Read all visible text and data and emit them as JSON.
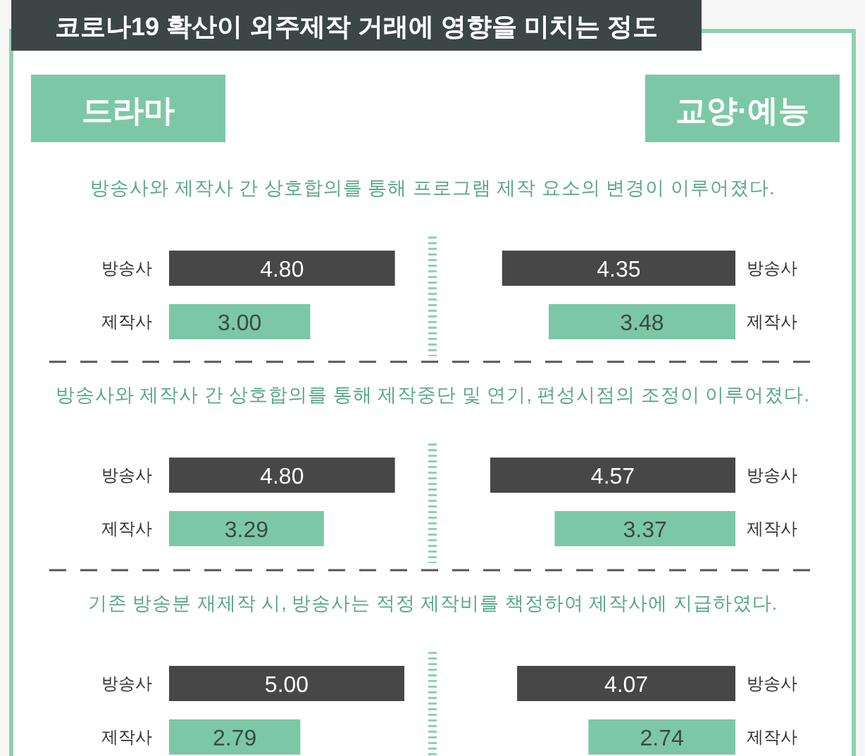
{
  "chart_data": [
    {
      "type": "bar",
      "orientation": "horizontal",
      "title": "코로나19 확산이 외주제작 거래에 영향을 미치는 정도",
      "subtitle": "드라마",
      "annotations": [
        "방송사와 제작사 간 상호합의를 통해 프로그램 제작 요소의 변경이 이루어졌다."
      ],
      "categories": [
        "방송사",
        "제작사"
      ],
      "values": [
        4.8,
        3.0
      ],
      "colors": [
        "#474747",
        "#7cc8a6"
      ],
      "value_labels": [
        "4.80",
        "3.00"
      ]
    },
    {
      "type": "bar",
      "orientation": "horizontal",
      "subtitle": "교양·예능",
      "categories": [
        "방송사",
        "제작사"
      ],
      "values": [
        4.35,
        3.48
      ],
      "colors": [
        "#474747",
        "#7cc8a6"
      ],
      "value_labels": [
        "4.35",
        "3.48"
      ]
    },
    {
      "type": "bar",
      "orientation": "horizontal",
      "annotations": [
        "방송사와 제작사 간 상호합의를 통해 제작중단 및 연기, 편성시점의 조정이 이루어졌다."
      ],
      "categories": [
        "방송사",
        "제작사"
      ],
      "values": [
        4.8,
        3.29
      ],
      "colors": [
        "#474747",
        "#7cc8a6"
      ],
      "value_labels": [
        "4.80",
        "3.29"
      ]
    },
    {
      "type": "bar",
      "orientation": "horizontal",
      "categories": [
        "방송사",
        "제작사"
      ],
      "values": [
        4.57,
        3.37
      ],
      "colors": [
        "#474747",
        "#7cc8a6"
      ],
      "value_labels": [
        "4.57",
        "3.37"
      ]
    },
    {
      "type": "bar",
      "orientation": "horizontal",
      "annotations": [
        "기존 방송분 재제작 시, 방송사는 적정 제작비를 책정하여 제작사에 지급하였다."
      ],
      "categories": [
        "방송사",
        "제작사"
      ],
      "values": [
        5.0,
        2.79
      ],
      "colors": [
        "#474747",
        "#7cc8a6"
      ],
      "value_labels": [
        "5.00",
        "2.79"
      ]
    },
    {
      "type": "bar",
      "orientation": "horizontal",
      "categories": [
        "방송사",
        "제작사"
      ],
      "values": [
        4.07,
        2.74
      ],
      "colors": [
        "#474747",
        "#7cc8a6"
      ],
      "value_labels": [
        "4.07",
        "2.74"
      ]
    }
  ]
}
